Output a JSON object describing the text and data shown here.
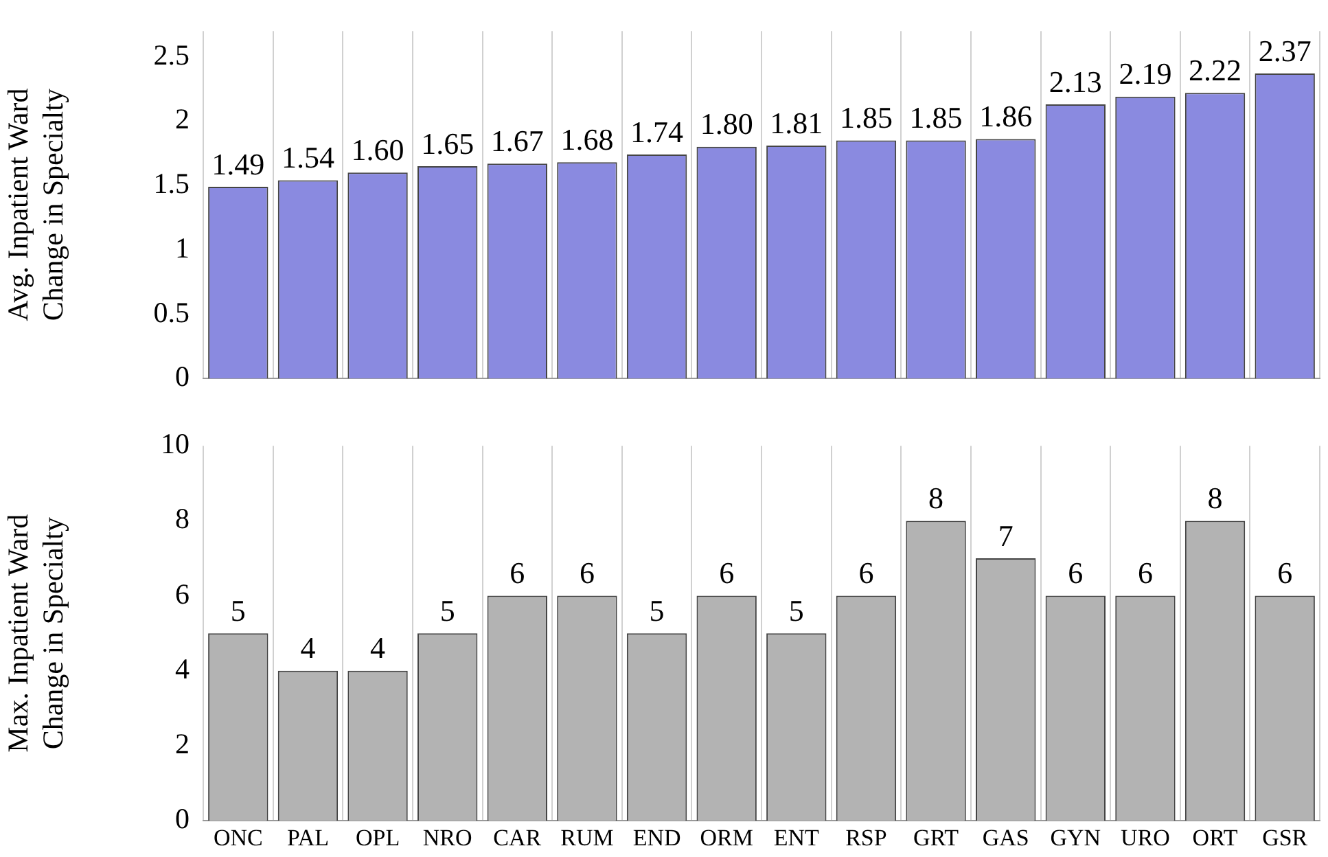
{
  "chart_data": [
    {
      "type": "bar",
      "ylabel": "Avg. Inpatient Ward Change in Specialty",
      "categories": [
        null,
        null,
        null,
        null,
        null,
        null,
        null,
        null,
        null,
        null,
        null,
        null,
        null,
        null,
        null,
        null
      ],
      "values": [
        1.49,
        1.54,
        1.6,
        1.65,
        1.67,
        1.68,
        1.74,
        1.8,
        1.81,
        1.85,
        1.85,
        1.86,
        2.13,
        2.19,
        2.22,
        2.37
      ],
      "value_labels": [
        "1.49",
        "1.54",
        "1.60",
        "1.65",
        "1.67",
        "1.68",
        "1.74",
        "1.80",
        "1.81",
        "1.85",
        "1.85",
        "1.86",
        "2.13",
        "2.19",
        "2.22",
        "2.37"
      ],
      "color": "#8a8ae0",
      "ylim": [
        0,
        2.7
      ],
      "yticks": [
        0,
        0.5,
        1,
        1.5,
        2,
        2.5
      ],
      "grid": "x"
    },
    {
      "type": "bar",
      "ylabel": "Max. Inpatient Ward Change in Specialty",
      "categories": [
        "ONC",
        "PAL",
        "OPL",
        "NRO",
        "CAR",
        "RUM",
        "END",
        "ORM",
        "ENT",
        "RSP",
        "GRT",
        "GAS",
        "GYN",
        "URO",
        "ORT",
        "GSR"
      ],
      "values": [
        5,
        4,
        4,
        5,
        6,
        6,
        5,
        6,
        5,
        6,
        8,
        7,
        6,
        6,
        8,
        6
      ],
      "data_labels": true,
      "color": "#b3b3b3",
      "ylim": [
        0,
        10
      ],
      "yticks": [
        0,
        2,
        4,
        6,
        8,
        10
      ],
      "grid": "x"
    }
  ]
}
